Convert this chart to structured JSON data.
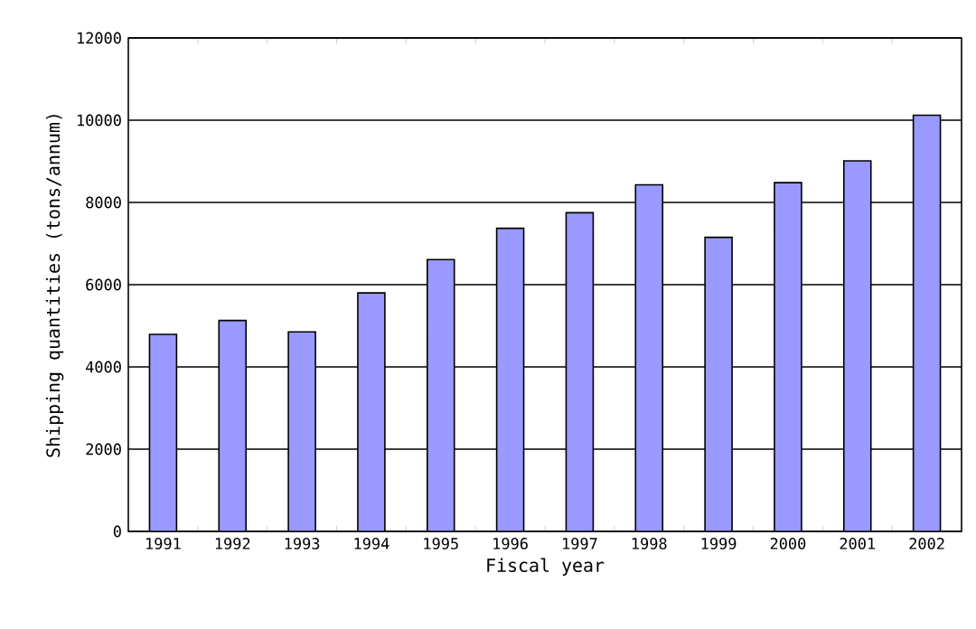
{
  "chart_data": {
    "type": "bar",
    "xlabel": "Fiscal year",
    "ylabel": "Shipping quantities (tons/annum)",
    "categories": [
      "1991",
      "1992",
      "1993",
      "1994",
      "1995",
      "1996",
      "1997",
      "1998",
      "1999",
      "2000",
      "2001",
      "2002"
    ],
    "values": [
      4790,
      5130,
      4850,
      5800,
      6610,
      7370,
      7750,
      8430,
      7150,
      8480,
      9010,
      10120
    ],
    "color": "#9999ff",
    "ylim": [
      0,
      12000
    ],
    "yticks": [
      0,
      2000,
      4000,
      6000,
      8000,
      10000,
      12000
    ],
    "grid": "y"
  }
}
